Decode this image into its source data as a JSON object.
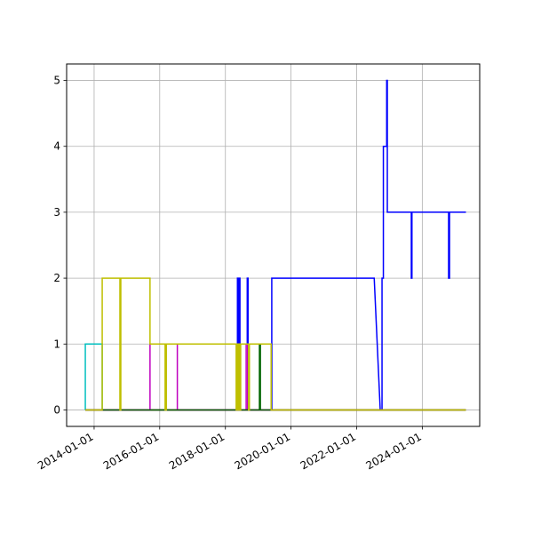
{
  "chart_data": {
    "type": "line",
    "title": "",
    "xlabel": "",
    "ylabel": "",
    "x_axis_type": "date",
    "xlim": [
      "2013-03-01",
      "2025-10-01"
    ],
    "ylim": [
      -0.25,
      5.25
    ],
    "grid": true,
    "legend": false,
    "x_ticks": [
      "2014-01-01",
      "2016-01-01",
      "2018-01-01",
      "2020-01-01",
      "2022-01-01",
      "2024-01-01"
    ],
    "y_ticks": [
      0,
      1,
      2,
      3,
      4,
      5
    ],
    "x_tick_labels": [
      "2014-01-01",
      "2016-01-01",
      "2018-01-01",
      "2020-01-01",
      "2022-01-01",
      "2024-01-01"
    ],
    "y_tick_labels": [
      "0",
      "1",
      "2",
      "3",
      "4",
      "5"
    ],
    "series": [
      {
        "color": "#0000ff",
        "points": [
          [
            "2013-09-25",
            0
          ],
          [
            "2018-05-15",
            0
          ],
          [
            "2018-05-15",
            2
          ],
          [
            "2018-05-20",
            2
          ],
          [
            "2018-05-20",
            0
          ],
          [
            "2018-05-25",
            0
          ],
          [
            "2018-05-25",
            2
          ],
          [
            "2018-05-30",
            2
          ],
          [
            "2018-05-30",
            0
          ],
          [
            "2018-06-05",
            0
          ],
          [
            "2018-06-05",
            2
          ],
          [
            "2018-06-12",
            2
          ],
          [
            "2018-06-12",
            1
          ],
          [
            "2018-09-01",
            1
          ],
          [
            "2018-09-01",
            2
          ],
          [
            "2018-09-10",
            2
          ],
          [
            "2018-09-10",
            0
          ],
          [
            "2019-06-01",
            0
          ],
          [
            "2019-06-01",
            2
          ],
          [
            "2022-07-15",
            2
          ],
          [
            "2022-09-20",
            0
          ],
          [
            "2022-10-10",
            0
          ],
          [
            "2022-10-10",
            2
          ],
          [
            "2022-10-25",
            2
          ],
          [
            "2022-10-25",
            4
          ],
          [
            "2022-12-01",
            4
          ],
          [
            "2022-12-01",
            5
          ],
          [
            "2022-12-08",
            5
          ],
          [
            "2022-12-08",
            3
          ],
          [
            "2023-09-01",
            3
          ],
          [
            "2023-09-01",
            2
          ],
          [
            "2023-09-08",
            2
          ],
          [
            "2023-09-08",
            3
          ],
          [
            "2024-10-20",
            3
          ],
          [
            "2024-10-20",
            2
          ],
          [
            "2024-10-30",
            2
          ],
          [
            "2024-10-30",
            3
          ],
          [
            "2025-05-01",
            3
          ]
        ]
      },
      {
        "color": "#00bfbf",
        "points": [
          [
            "2013-09-25",
            0
          ],
          [
            "2013-09-25",
            1
          ],
          [
            "2014-04-01",
            1
          ],
          [
            "2014-04-01",
            0
          ],
          [
            "2025-05-01",
            0
          ]
        ]
      },
      {
        "color": "#ff0000",
        "points": [
          [
            "2013-09-25",
            0
          ],
          [
            "2025-05-01",
            0
          ]
        ]
      },
      {
        "color": "#bf00bf",
        "points": [
          [
            "2013-09-25",
            0
          ],
          [
            "2015-09-15",
            0
          ],
          [
            "2015-09-15",
            1
          ],
          [
            "2016-07-15",
            1
          ],
          [
            "2016-07-15",
            0
          ],
          [
            "2018-08-20",
            0
          ],
          [
            "2018-08-20",
            1
          ],
          [
            "2018-09-05",
            1
          ],
          [
            "2018-09-05",
            0
          ],
          [
            "2025-05-01",
            0
          ]
        ]
      },
      {
        "color": "#006400",
        "points": [
          [
            "2013-09-25",
            0
          ],
          [
            "2019-01-15",
            0
          ],
          [
            "2019-01-15",
            1
          ],
          [
            "2019-01-25",
            1
          ],
          [
            "2019-01-25",
            0
          ],
          [
            "2025-05-01",
            0
          ]
        ]
      },
      {
        "color": "#bfbf00",
        "points": [
          [
            "2013-09-25",
            0
          ],
          [
            "2014-04-01",
            0
          ],
          [
            "2014-04-01",
            2
          ],
          [
            "2014-10-15",
            2
          ],
          [
            "2014-10-15",
            0
          ],
          [
            "2014-10-25",
            0
          ],
          [
            "2014-10-25",
            2
          ],
          [
            "2015-09-15",
            2
          ],
          [
            "2015-09-15",
            1
          ],
          [
            "2016-03-01",
            1
          ],
          [
            "2016-03-01",
            0
          ],
          [
            "2016-03-15",
            0
          ],
          [
            "2016-03-15",
            1
          ],
          [
            "2018-05-01",
            1
          ],
          [
            "2018-05-01",
            0
          ],
          [
            "2018-05-10",
            0
          ],
          [
            "2018-05-10",
            1
          ],
          [
            "2018-05-20",
            1
          ],
          [
            "2018-05-20",
            0
          ],
          [
            "2018-05-28",
            0
          ],
          [
            "2018-05-28",
            1
          ],
          [
            "2018-06-10",
            1
          ],
          [
            "2018-06-10",
            0
          ],
          [
            "2018-06-20",
            0
          ],
          [
            "2018-06-20",
            1
          ],
          [
            "2018-09-15",
            1
          ],
          [
            "2018-09-15",
            0
          ],
          [
            "2018-09-25",
            0
          ],
          [
            "2018-09-25",
            1
          ],
          [
            "2019-05-25",
            1
          ],
          [
            "2019-05-25",
            0
          ],
          [
            "2025-05-01",
            0
          ]
        ]
      }
    ]
  }
}
